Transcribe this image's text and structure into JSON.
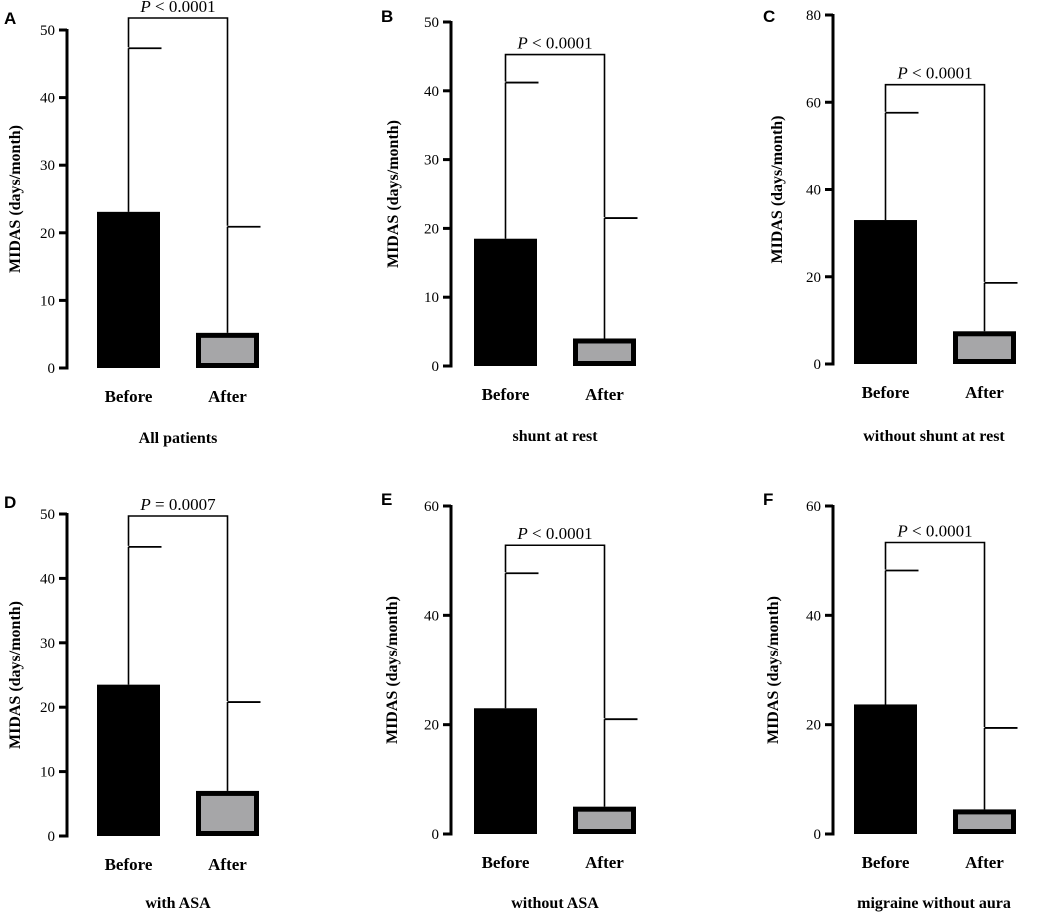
{
  "chart_data": [
    {
      "panel": "A",
      "type": "bar",
      "subtitle": "All patients",
      "ylabel": "MIDAS (days/month)",
      "ylim": [
        0,
        50
      ],
      "yticks": [
        0,
        10,
        20,
        30,
        40,
        50
      ],
      "categories": [
        "Before",
        "After"
      ],
      "values": [
        23.1,
        5.2
      ],
      "error_upper": [
        47.3,
        20.9
      ],
      "bar_colors": [
        "#000000",
        "#a6a6a8"
      ],
      "pvalue_label": {
        "p": "P",
        "rest": " < 0.0001"
      }
    },
    {
      "panel": "B",
      "type": "bar",
      "subtitle": "shunt at rest",
      "ylabel": "MIDAS (days/month)",
      "ylim": [
        0,
        50
      ],
      "yticks": [
        0,
        10,
        20,
        30,
        40,
        50
      ],
      "categories": [
        "Before",
        "After"
      ],
      "values": [
        18.5,
        4.0
      ],
      "error_upper": [
        41.2,
        21.5
      ],
      "bar_colors": [
        "#000000",
        "#a6a6a8"
      ],
      "pvalue_label": {
        "p": "P",
        "rest": " < 0.0001"
      }
    },
    {
      "panel": "C",
      "type": "bar",
      "subtitle": "without shunt at rest",
      "ylabel": "MIDAS (days/month)",
      "ylim": [
        0,
        80
      ],
      "yticks": [
        0,
        20,
        40,
        60,
        80
      ],
      "categories": [
        "Before",
        "After"
      ],
      "values": [
        33.0,
        7.5
      ],
      "error_upper": [
        57.6,
        18.6
      ],
      "bar_colors": [
        "#000000",
        "#a6a6a8"
      ],
      "pvalue_label": {
        "p": "P",
        "rest": " < 0.0001"
      }
    },
    {
      "panel": "D",
      "type": "bar",
      "subtitle": "with ASA",
      "ylabel": "MIDAS (days/month)",
      "ylim": [
        0,
        50
      ],
      "yticks": [
        0,
        10,
        20,
        30,
        40,
        50
      ],
      "categories": [
        "Before",
        "After"
      ],
      "values": [
        23.5,
        7.0
      ],
      "error_upper": [
        44.9,
        20.8
      ],
      "bar_colors": [
        "#000000",
        "#a6a6a8"
      ],
      "pvalue_label": {
        "p": "P",
        "rest": " = 0.0007"
      }
    },
    {
      "panel": "E",
      "type": "bar",
      "subtitle": "without ASA",
      "ylabel": "MIDAS (days/month)",
      "ylim": [
        0,
        60
      ],
      "yticks": [
        0,
        20,
        40,
        60
      ],
      "categories": [
        "Before",
        "After"
      ],
      "values": [
        23.0,
        5.0
      ],
      "error_upper": [
        47.7,
        21.0
      ],
      "bar_colors": [
        "#000000",
        "#a6a6a8"
      ],
      "pvalue_label": {
        "p": "P",
        "rest": " < 0.0001"
      }
    },
    {
      "panel": "F",
      "type": "bar",
      "subtitle": "migraine without aura",
      "ylabel": "MIDAS (days/month)",
      "ylim": [
        0,
        60
      ],
      "yticks": [
        0,
        20,
        40,
        60
      ],
      "categories": [
        "Before",
        "After"
      ],
      "values": [
        23.7,
        4.5
      ],
      "error_upper": [
        48.2,
        19.4
      ],
      "bar_colors": [
        "#000000",
        "#a6a6a8"
      ],
      "pvalue_label": {
        "p": "P",
        "rest": " < 0.0001"
      }
    }
  ]
}
